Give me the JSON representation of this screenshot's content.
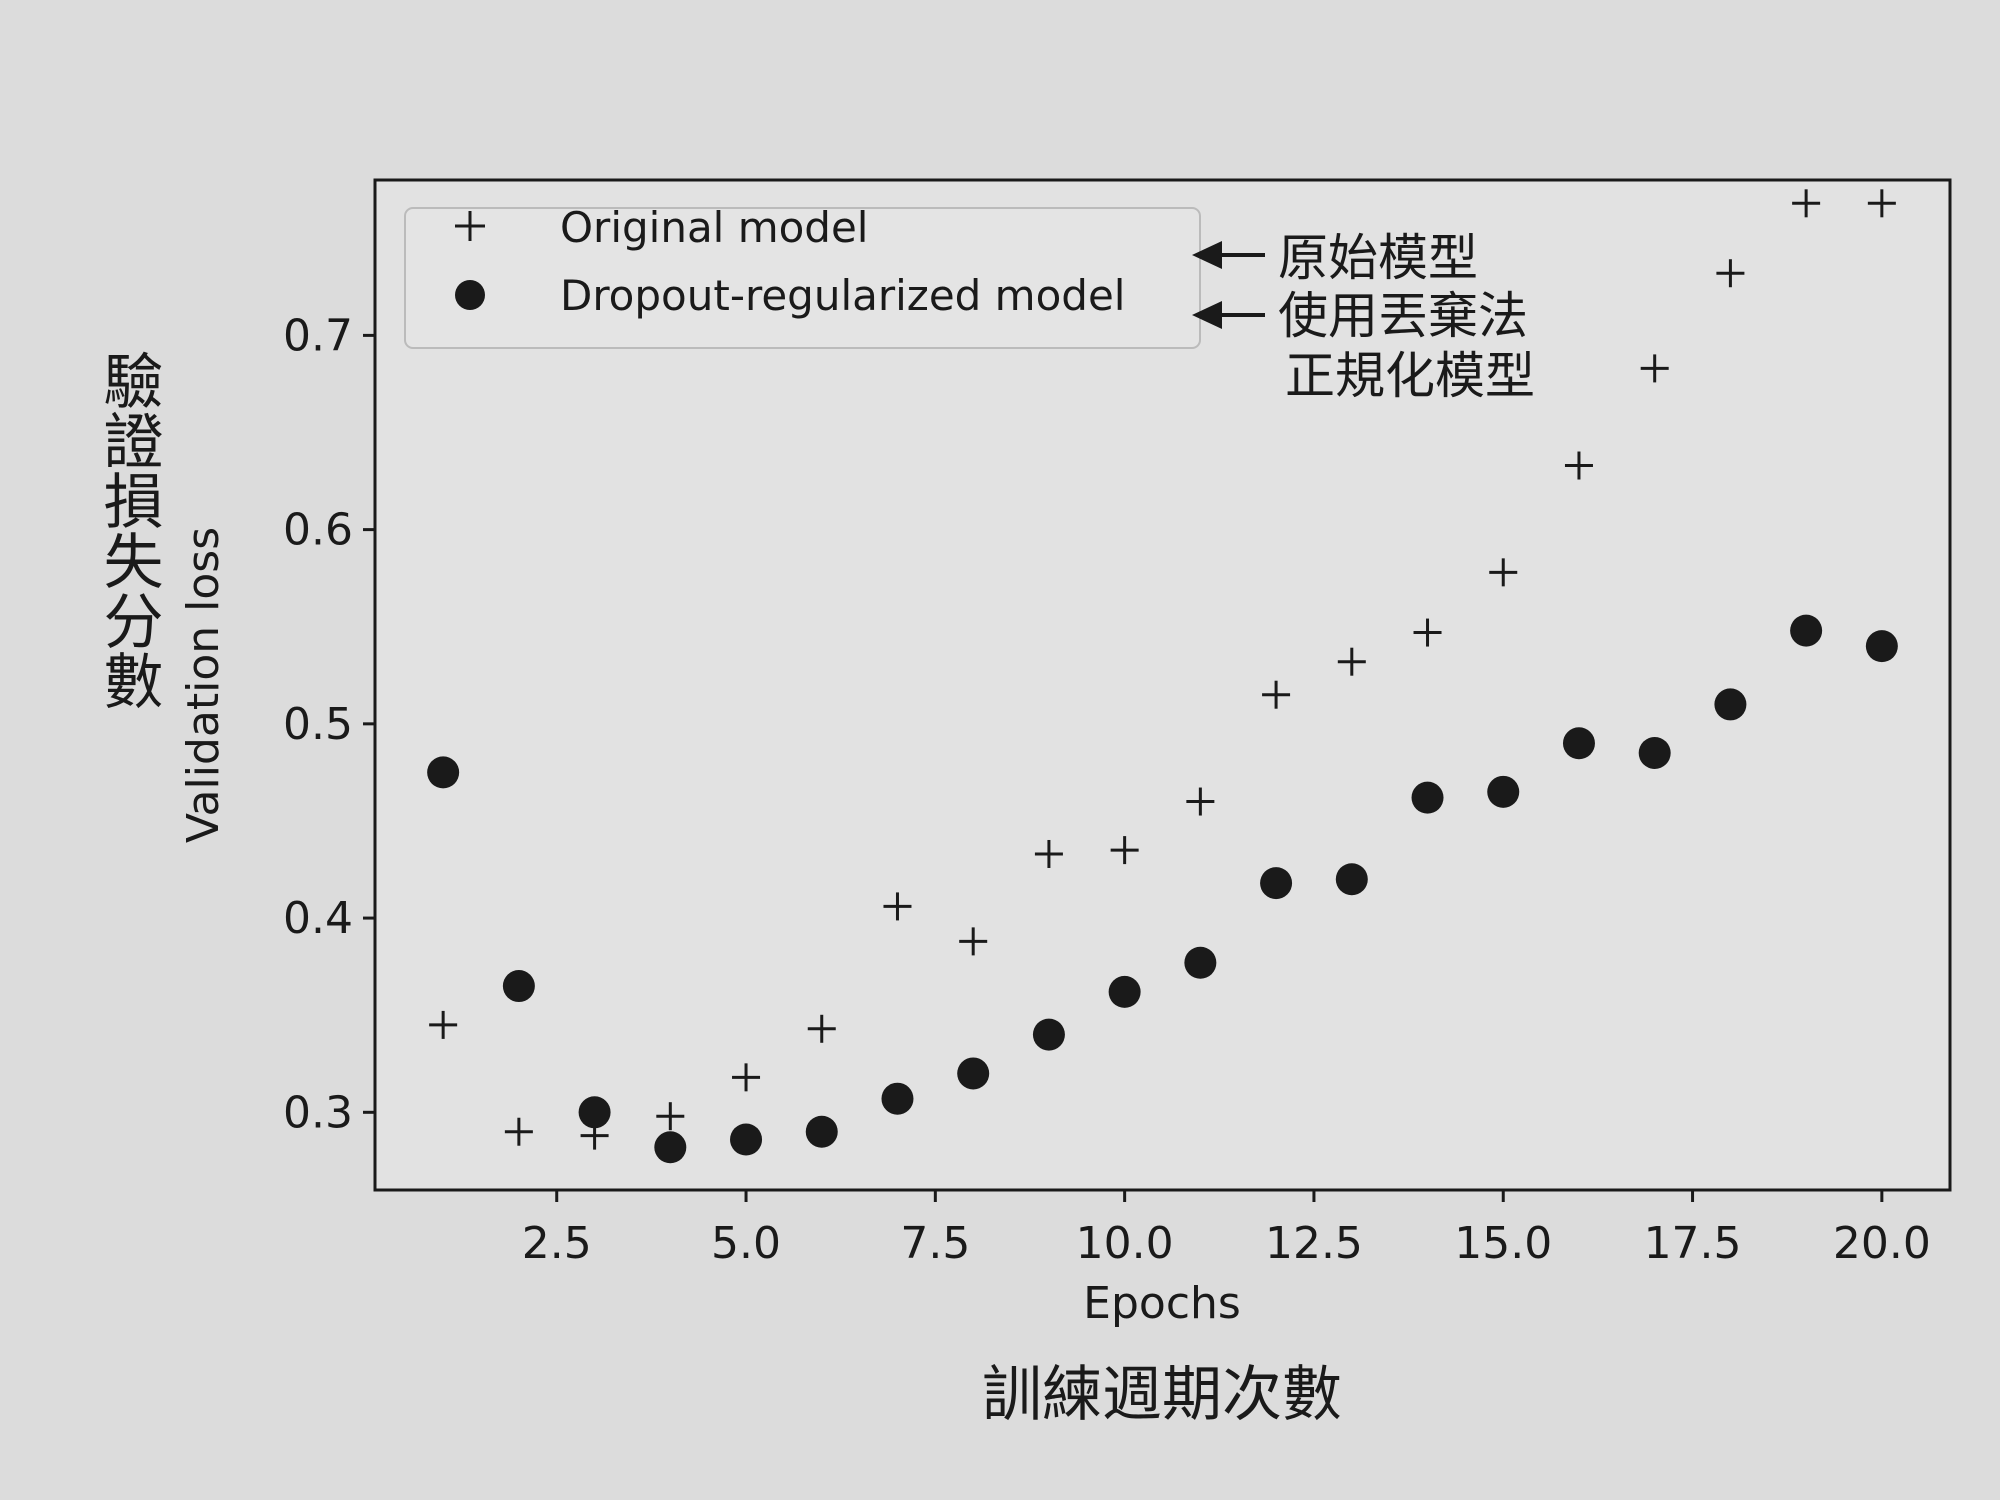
{
  "chart_data": {
    "type": "scatter",
    "x": [
      1,
      2,
      3,
      4,
      5,
      6,
      7,
      8,
      9,
      10,
      11,
      12,
      13,
      14,
      15,
      16,
      17,
      18,
      19,
      20
    ],
    "series": [
      {
        "name": "Original model",
        "marker": "plus",
        "values": [
          0.345,
          0.29,
          0.288,
          0.298,
          0.318,
          0.343,
          0.406,
          0.388,
          0.433,
          0.435,
          0.46,
          0.515,
          0.532,
          0.547,
          0.578,
          0.633,
          0.683,
          0.732,
          0.768,
          0.768
        ]
      },
      {
        "name": "Dropout-regularized model",
        "marker": "circle",
        "values": [
          0.475,
          0.365,
          0.3,
          0.282,
          0.286,
          0.29,
          0.307,
          0.32,
          0.34,
          0.362,
          0.377,
          0.418,
          0.42,
          0.462,
          0.465,
          0.49,
          0.485,
          0.51,
          0.548,
          0.54
        ]
      }
    ],
    "xlabel": "Epochs",
    "ylabel": "Validation loss",
    "xlim": [
      0.1,
      20.9
    ],
    "ylim": [
      0.26,
      0.78
    ],
    "xticks": [
      "2.5",
      "5.0",
      "7.5",
      "10.0",
      "12.5",
      "15.0",
      "17.5",
      "20.0"
    ],
    "yticks": [
      "0.3",
      "0.4",
      "0.5",
      "0.6",
      "0.7"
    ],
    "legend_position": "top-left",
    "grid": false
  },
  "annotations": {
    "xlabel_translation": "訓練週期次數",
    "ylabel_translation": "驗證損失分數",
    "original_translation": "原始模型",
    "dropout_translation_line1": "使用丟棄法",
    "dropout_translation_line2": "正規化模型"
  },
  "colors": {
    "background": "#dcdcdc",
    "ink": "#1a1a1a",
    "legend_border": "#bbbbbb"
  }
}
